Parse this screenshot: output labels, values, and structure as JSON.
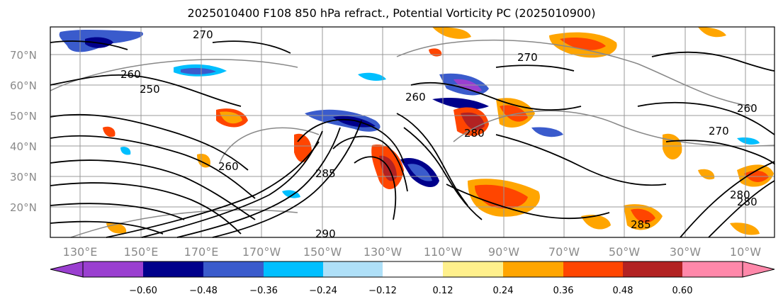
{
  "title": "2025010400 F108 850 hPa refract., Potential Vorticity PC (2025010900)",
  "latitude_labels": [
    "70°N",
    "60°N",
    "50°N",
    "40°N",
    "30°N",
    "20°N"
  ],
  "longitude_labels": [
    "130°E",
    "150°E",
    "170°E",
    "170°W",
    "150°W",
    "130°W",
    "110°W",
    "90°W",
    "70°W",
    "50°W",
    "30°W",
    "10°W"
  ],
  "contour_labels": [
    "270",
    "260",
    "260",
    "250",
    "260",
    "270",
    "270",
    "260",
    "285",
    "280",
    "285",
    "280",
    "280",
    "290"
  ],
  "colorbar": {
    "ticks": [
      "−0.60",
      "−0.48",
      "−0.36",
      "−0.24",
      "−0.12",
      "0.12",
      "0.24",
      "0.36",
      "0.48",
      "0.60"
    ],
    "colors": {
      "lt_min": "#9a3fd0",
      "b1": "#00008b",
      "b2": "#3a5bcc",
      "b3": "#00bfff",
      "b4": "#afe0f8",
      "b5": "#ffffff",
      "b6": "#ffffff",
      "b7": "#fff08c",
      "b8": "#ffa500",
      "b9": "#ff4500",
      "b10": "#b22222",
      "gt_max": "#ff88aa"
    }
  }
}
